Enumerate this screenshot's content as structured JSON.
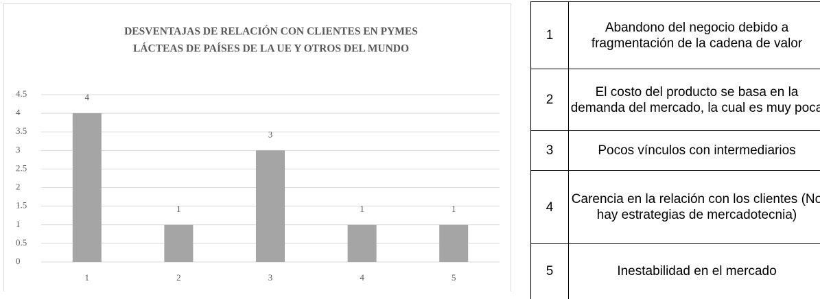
{
  "chart_data": {
    "type": "bar",
    "title": [
      "DESVENTAJAS  DE RELACIÓN CON CLIENTES EN PYMES",
      "LÁCTEAS  DE PAÍSES DE LA UE Y OTROS DEL MUNDO"
    ],
    "categories": [
      "1",
      "2",
      "3",
      "4",
      "5"
    ],
    "values": [
      4,
      1,
      3,
      1,
      1
    ],
    "color": "#a5a5a5",
    "ylim": [
      0,
      4.5
    ],
    "yticks": [
      0,
      0.5,
      1,
      1.5,
      2,
      2.5,
      3,
      3.5,
      4,
      4.5
    ],
    "grid": true
  },
  "table": {
    "rows": [
      [
        "1",
        "Abandono del negocio debido a fragmentación de la cadena de valor"
      ],
      [
        "2",
        "El costo del producto se basa en la demanda del mercado, la cual es muy poca"
      ],
      [
        "3",
        "Pocos vínculos con intermediarios"
      ],
      [
        "4",
        "Carencia en la relación con los clientes (No hay estrategias de mercadotecnia)"
      ],
      [
        "5",
        "Inestabilidad en el mercado"
      ]
    ]
  }
}
